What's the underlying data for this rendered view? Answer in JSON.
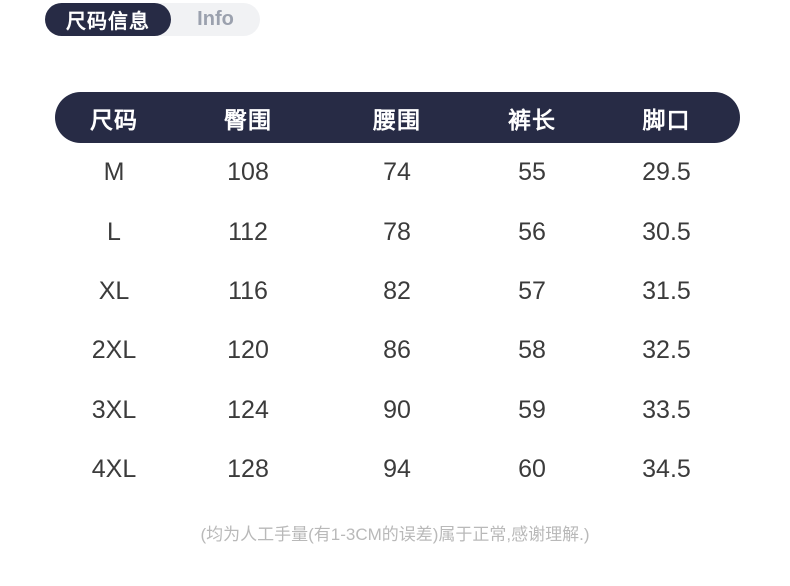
{
  "tabs": {
    "active_label": "尺码信息",
    "inactive_label": "Info"
  },
  "table": {
    "headers": [
      "尺码",
      "臀围",
      "腰围",
      "裤长",
      "脚口"
    ],
    "rows": [
      [
        "M",
        "108",
        "74",
        "55",
        "29.5"
      ],
      [
        "L",
        "112",
        "78",
        "56",
        "30.5"
      ],
      [
        "XL",
        "116",
        "82",
        "57",
        "31.5"
      ],
      [
        "2XL",
        "120",
        "86",
        "58",
        "32.5"
      ],
      [
        "3XL",
        "124",
        "90",
        "59",
        "33.5"
      ],
      [
        "4XL",
        "128",
        "94",
        "60",
        "34.5"
      ]
    ]
  },
  "footer": {
    "note": "(均为人工手量(有1-3CM的误差)属于正常,感谢理解.)"
  },
  "colors": {
    "navy": "#272b45",
    "tab_track_bg": "#f1f2f4",
    "inactive_tab_text": "#9ba1ae",
    "cell_text": "#3b3b3b",
    "footer_text": "#b9b9b9"
  }
}
